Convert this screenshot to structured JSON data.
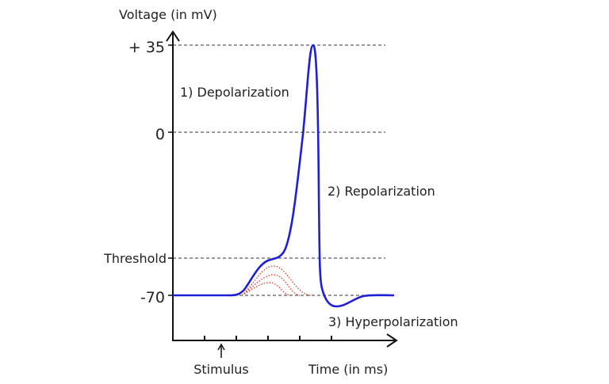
{
  "axes": {
    "y_label": "Voltage (in mV)",
    "x_label": "Time (in ms)",
    "stimulus_label": "Stimulus"
  },
  "levels": {
    "peak": "+ 35",
    "zero": "0",
    "threshold": "Threshold",
    "resting": "-70"
  },
  "phases": {
    "depolarization": "1) Depolarization",
    "repolarization": "2) Repolarization",
    "hyperpolarization": "3) Hyperpolarization"
  },
  "colors": {
    "action_potential": "#1f1fd6",
    "subthreshold": "#e0483c",
    "axis": "#111111",
    "guide": "#333333"
  }
}
